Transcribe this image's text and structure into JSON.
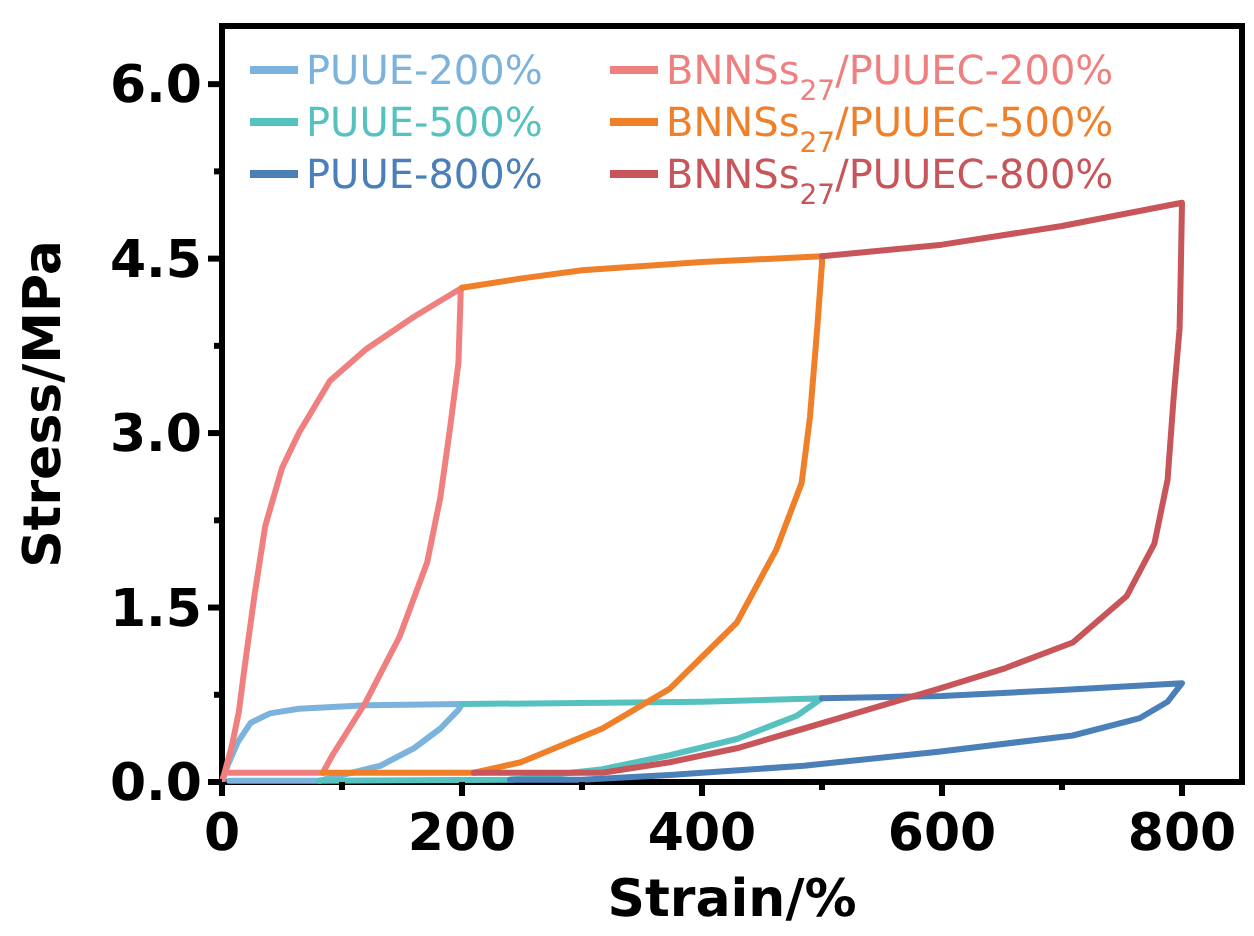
{
  "chart_data": {
    "type": "line",
    "xlabel": "Strain/%",
    "ylabel": "Stress/MPa",
    "xlim": [
      0,
      850
    ],
    "ylim": [
      0,
      6.5
    ],
    "xticks": [
      0,
      {
        "value": 100,
        "label": null
      },
      200,
      {
        "value": 300,
        "label": null
      },
      400,
      {
        "value": 500,
        "label": null
      },
      600,
      {
        "value": 700,
        "label": null
      },
      800
    ],
    "yticks": [
      {
        "value": 0,
        "label": "0.0"
      },
      {
        "value": 0.75,
        "label": null
      },
      {
        "value": 1.5,
        "label": "1.5"
      },
      {
        "value": 2.25,
        "label": null
      },
      {
        "value": 3,
        "label": "3.0"
      },
      {
        "value": 3.75,
        "label": null
      },
      {
        "value": 4.5,
        "label": "4.5"
      },
      {
        "value": 5.25,
        "label": null
      },
      {
        "value": 6,
        "label": "6.0"
      }
    ],
    "legend": "top left",
    "grid": false,
    "marker": "none",
    "line_style": "solid",
    "series": [
      {
        "name": "PUUE-200%",
        "color": "#7bb3dc",
        "x": [
          0,
          5,
          13,
          24,
          40,
          64,
          120,
          200,
          197,
          182,
          160,
          132,
          92,
          81,
          6
        ],
        "values": [
          0,
          0.15,
          0.34,
          0.51,
          0.59,
          0.63,
          0.66,
          0.67,
          0.62,
          0.46,
          0.29,
          0.14,
          0.04,
          0.01,
          0.01
        ]
      },
      {
        "name": "PUUE-500%",
        "color": "#55c2c0",
        "x": [
          200,
          400,
          500,
          479,
          429,
          373,
          317,
          240,
          81
        ],
        "values": [
          0.67,
          0.69,
          0.72,
          0.57,
          0.37,
          0.23,
          0.11,
          0.02,
          0.01
        ]
      },
      {
        "name": "PUUE-800%",
        "color": "#4a7fb8",
        "x": [
          500,
          600,
          700,
          800,
          788,
          765,
          709,
          597,
          485,
          373,
          300,
          240
        ],
        "values": [
          0.72,
          0.74,
          0.79,
          0.85,
          0.69,
          0.55,
          0.4,
          0.26,
          0.14,
          0.06,
          0.02,
          0.02
        ]
      },
      {
        "name": "BNNSs$_{27}$/PUUEC-200%",
        "color": "#f08080",
        "x": [
          0,
          8,
          14,
          19,
          27,
          36,
          50,
          64,
          90,
          120,
          160,
          200,
          199,
          197,
          190,
          182,
          171,
          148,
          120,
          92,
          84,
          6
        ],
        "values": [
          0,
          0.3,
          0.6,
          1.0,
          1.6,
          2.2,
          2.7,
          3.0,
          3.45,
          3.72,
          4.0,
          4.25,
          4.23,
          3.6,
          3.04,
          2.45,
          1.89,
          1.25,
          0.69,
          0.23,
          0.08,
          0.08
        ]
      },
      {
        "name": "BNNSs$_{27}$/PUUEC-500%",
        "color": "#f07f2a",
        "x": [
          200,
          250,
          300,
          400,
          500,
          500,
          496,
          490,
          483,
          462,
          429,
          373,
          317,
          249,
          210,
          84
        ],
        "values": [
          4.25,
          4.33,
          4.4,
          4.47,
          4.52,
          4.46,
          3.9,
          3.14,
          2.57,
          2.0,
          1.37,
          0.8,
          0.46,
          0.17,
          0.08,
          0.08
        ]
      },
      {
        "name": "BNNSs$_{27}$/PUUEC-800%",
        "color": "#c8555a",
        "x": [
          500,
          600,
          700,
          800,
          799,
          798,
          793,
          788,
          777,
          754,
          709,
          653,
          597,
          541,
          485,
          429,
          373,
          317,
          260,
          210
        ],
        "values": [
          4.52,
          4.62,
          4.78,
          4.98,
          4.4,
          3.9,
          3.3,
          2.6,
          2.05,
          1.6,
          1.2,
          0.98,
          0.8,
          0.63,
          0.46,
          0.29,
          0.17,
          0.08,
          0.08,
          0.08
        ]
      }
    ]
  }
}
